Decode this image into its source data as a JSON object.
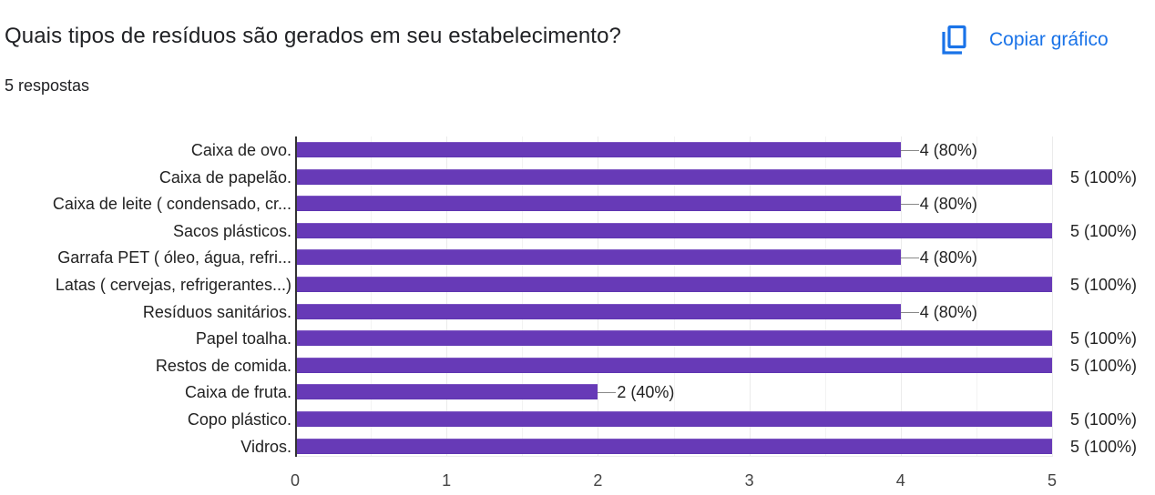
{
  "header": {
    "title": "Quais tipos de resíduos são gerados em seu estabelecimento?",
    "response_count": "5 respostas",
    "copy_button_label": "Copiar gráfico",
    "copy_icon": "copy-icon"
  },
  "colors": {
    "bar": "#673ab7",
    "accent": "#1a73e8",
    "text": "#202124"
  },
  "chart_data": {
    "type": "bar",
    "orientation": "horizontal",
    "title": "Quais tipos de resíduos são gerados em seu estabelecimento?",
    "subtitle": "5 respostas",
    "categories": [
      "Caixa de ovo.",
      "Caixa de papelão.",
      "Caixa de leite ( condensado, cr...",
      "Sacos plásticos.",
      "Garrafa PET ( óleo, água, refri...",
      "Latas ( cervejas, refrigerantes...)",
      "Resíduos sanitários.",
      "Papel toalha.",
      "Restos de comida.",
      "Caixa de fruta.",
      "Copo plástico.",
      "Vidros."
    ],
    "values": [
      4,
      5,
      4,
      5,
      4,
      5,
      4,
      5,
      5,
      2,
      5,
      5
    ],
    "value_labels": [
      "4 (80%)",
      "5 (100%)",
      "4 (80%)",
      "5 (100%)",
      "4 (80%)",
      "5 (100%)",
      "4 (80%)",
      "5 (100%)",
      "5 (100%)",
      "2 (40%)",
      "5 (100%)",
      "5 (100%)"
    ],
    "xlabel": "",
    "ylabel": "",
    "xlim": [
      0,
      5
    ],
    "x_ticks": [
      "0",
      "1",
      "2",
      "3",
      "4",
      "5"
    ],
    "grid": true,
    "legend": "none"
  }
}
